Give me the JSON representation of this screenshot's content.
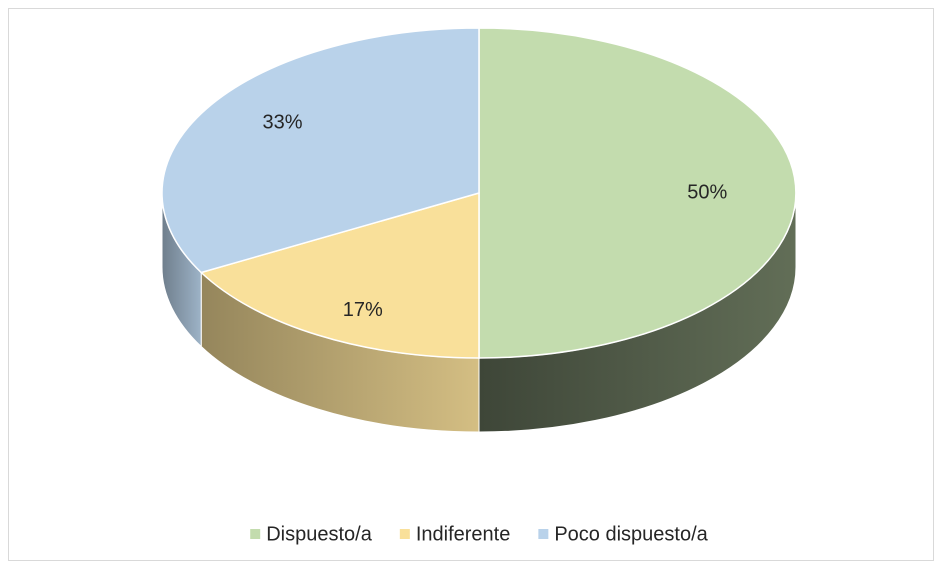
{
  "chart_data": {
    "type": "pie",
    "categories": [
      "Dispuesto/a",
      "Indiferente",
      "Poco dispuesto/a"
    ],
    "values": [
      50,
      17,
      33
    ],
    "value_labels": [
      "50%",
      "17%",
      "33%"
    ],
    "colors": [
      "#c3dcae",
      "#f9e09a",
      "#b9d2ea"
    ],
    "legend": "bottom"
  }
}
